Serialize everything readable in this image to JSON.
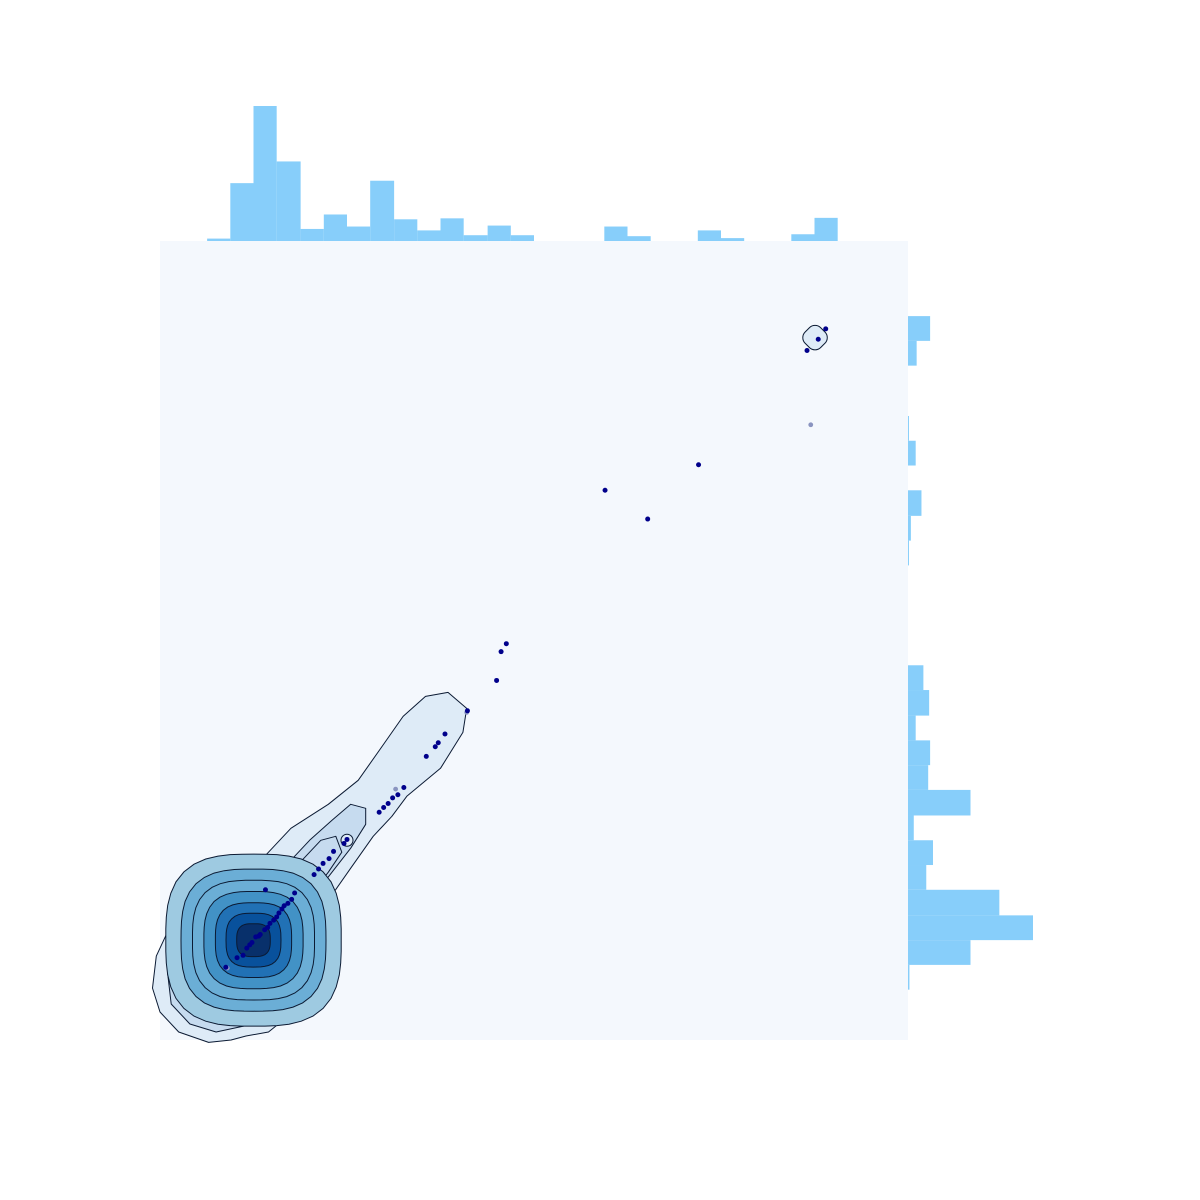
{
  "chart_data": {
    "type": "scatter",
    "subtype": "joint-plot-with-kde-contours-and-marginal-histograms",
    "title": "",
    "xlabel": "",
    "ylabel": "",
    "xlim": [
      0,
      100
    ],
    "ylim": [
      0,
      100
    ],
    "grid": false,
    "axes_visible": false,
    "colors": {
      "panel_background": "#f4f8fd",
      "histogram_fill": "#87cefa",
      "point": "#00008b",
      "point_faint": "#8a94c0",
      "contour_line": "#0b1a33",
      "kde_fills": [
        "#deebf7",
        "#c6dbef",
        "#9ecae1",
        "#6baed6",
        "#4292c6",
        "#2171b5",
        "#08519c",
        "#08306b"
      ]
    },
    "points": [
      {
        "x": 8.8,
        "y": 9.1
      },
      {
        "x": 10.3,
        "y": 10.3
      },
      {
        "x": 11.1,
        "y": 10.6
      },
      {
        "x": 11.6,
        "y": 11.5
      },
      {
        "x": 12.0,
        "y": 11.9
      },
      {
        "x": 12.3,
        "y": 12.2
      },
      {
        "x": 12.8,
        "y": 12.9
      },
      {
        "x": 13.2,
        "y": 13.0
      },
      {
        "x": 13.4,
        "y": 13.2
      },
      {
        "x": 14.0,
        "y": 13.8
      },
      {
        "x": 14.4,
        "y": 14.1
      },
      {
        "x": 14.7,
        "y": 14.6
      },
      {
        "x": 14.1,
        "y": 18.8
      },
      {
        "x": 15.2,
        "y": 15.0
      },
      {
        "x": 15.6,
        "y": 15.4
      },
      {
        "x": 15.9,
        "y": 15.9
      },
      {
        "x": 16.3,
        "y": 16.4
      },
      {
        "x": 16.6,
        "y": 16.8
      },
      {
        "x": 17.1,
        "y": 17.1
      },
      {
        "x": 17.6,
        "y": 17.6
      },
      {
        "x": 18.0,
        "y": 18.4
      },
      {
        "x": 20.6,
        "y": 20.7
      },
      {
        "x": 21.2,
        "y": 21.4
      },
      {
        "x": 21.8,
        "y": 22.1
      },
      {
        "x": 22.6,
        "y": 22.7
      },
      {
        "x": 23.2,
        "y": 23.6
      },
      {
        "x": 24.6,
        "y": 24.6
      },
      {
        "x": 25.0,
        "y": 25.1
      },
      {
        "x": 29.3,
        "y": 28.5
      },
      {
        "x": 29.9,
        "y": 29.1
      },
      {
        "x": 30.5,
        "y": 29.6
      },
      {
        "x": 31.1,
        "y": 30.3
      },
      {
        "x": 31.8,
        "y": 30.7
      },
      {
        "x": 32.6,
        "y": 31.6
      },
      {
        "x": 35.6,
        "y": 35.5
      },
      {
        "x": 36.8,
        "y": 36.7
      },
      {
        "x": 37.2,
        "y": 37.2
      },
      {
        "x": 38.1,
        "y": 38.3
      },
      {
        "x": 41.1,
        "y": 41.2
      },
      {
        "x": 45.0,
        "y": 45.0
      },
      {
        "x": 45.6,
        "y": 48.6
      },
      {
        "x": 46.3,
        "y": 49.6
      },
      {
        "x": 59.5,
        "y": 68.8
      },
      {
        "x": 65.2,
        "y": 65.2
      },
      {
        "x": 72.0,
        "y": 72.0
      },
      {
        "x": 86.5,
        "y": 86.3
      },
      {
        "x": 88.0,
        "y": 87.7
      },
      {
        "x": 89.0,
        "y": 89.0
      }
    ],
    "faint_points": [
      {
        "x": 87.0,
        "y": 77.0
      },
      {
        "x": 31.5,
        "y": 31.4
      },
      {
        "x": 41.0,
        "y": 41.0
      },
      {
        "x": 9.0,
        "y": 9.0
      }
    ],
    "kde_peak": {
      "x": 12.5,
      "y": 12.5
    },
    "x_histogram": {
      "bin_edges": [
        6.3,
        9.4,
        12.5,
        15.6,
        18.8,
        21.9,
        25.0,
        28.1,
        31.3,
        34.4,
        37.5,
        40.6,
        43.8,
        46.9,
        50.0,
        53.1,
        56.3,
        59.4,
        62.5,
        65.6,
        68.8,
        71.9,
        75.0,
        78.1,
        81.3,
        84.4,
        87.5,
        90.6
      ],
      "counts": [
        0.5,
        12,
        28,
        16.5,
        2.5,
        5.5,
        3,
        12.5,
        4.5,
        2.2,
        4.7,
        1.2,
        3.2,
        1.2,
        0,
        0,
        0,
        3,
        1,
        0,
        0,
        2.2,
        0.6,
        0,
        0,
        1.4,
        4.8
      ]
    },
    "y_histogram": {
      "bin_edges": [
        6.3,
        9.4,
        12.5,
        15.6,
        18.8,
        21.9,
        25.0,
        28.1,
        31.3,
        34.4,
        37.5,
        40.6,
        43.8,
        46.9,
        50.0,
        53.1,
        56.3,
        59.4,
        62.5,
        65.6,
        68.8,
        71.9,
        75.0,
        78.1,
        81.3,
        84.4,
        87.5,
        90.6
      ],
      "counts": [
        0.3,
        13,
        26,
        19,
        3.8,
        5.2,
        1.2,
        13,
        4.2,
        4.6,
        1.6,
        4.4,
        3.2,
        0,
        0,
        0,
        0,
        0.2,
        0.6,
        2.8,
        0,
        1.6,
        0.2,
        0,
        0,
        1.8,
        4.6
      ]
    }
  }
}
